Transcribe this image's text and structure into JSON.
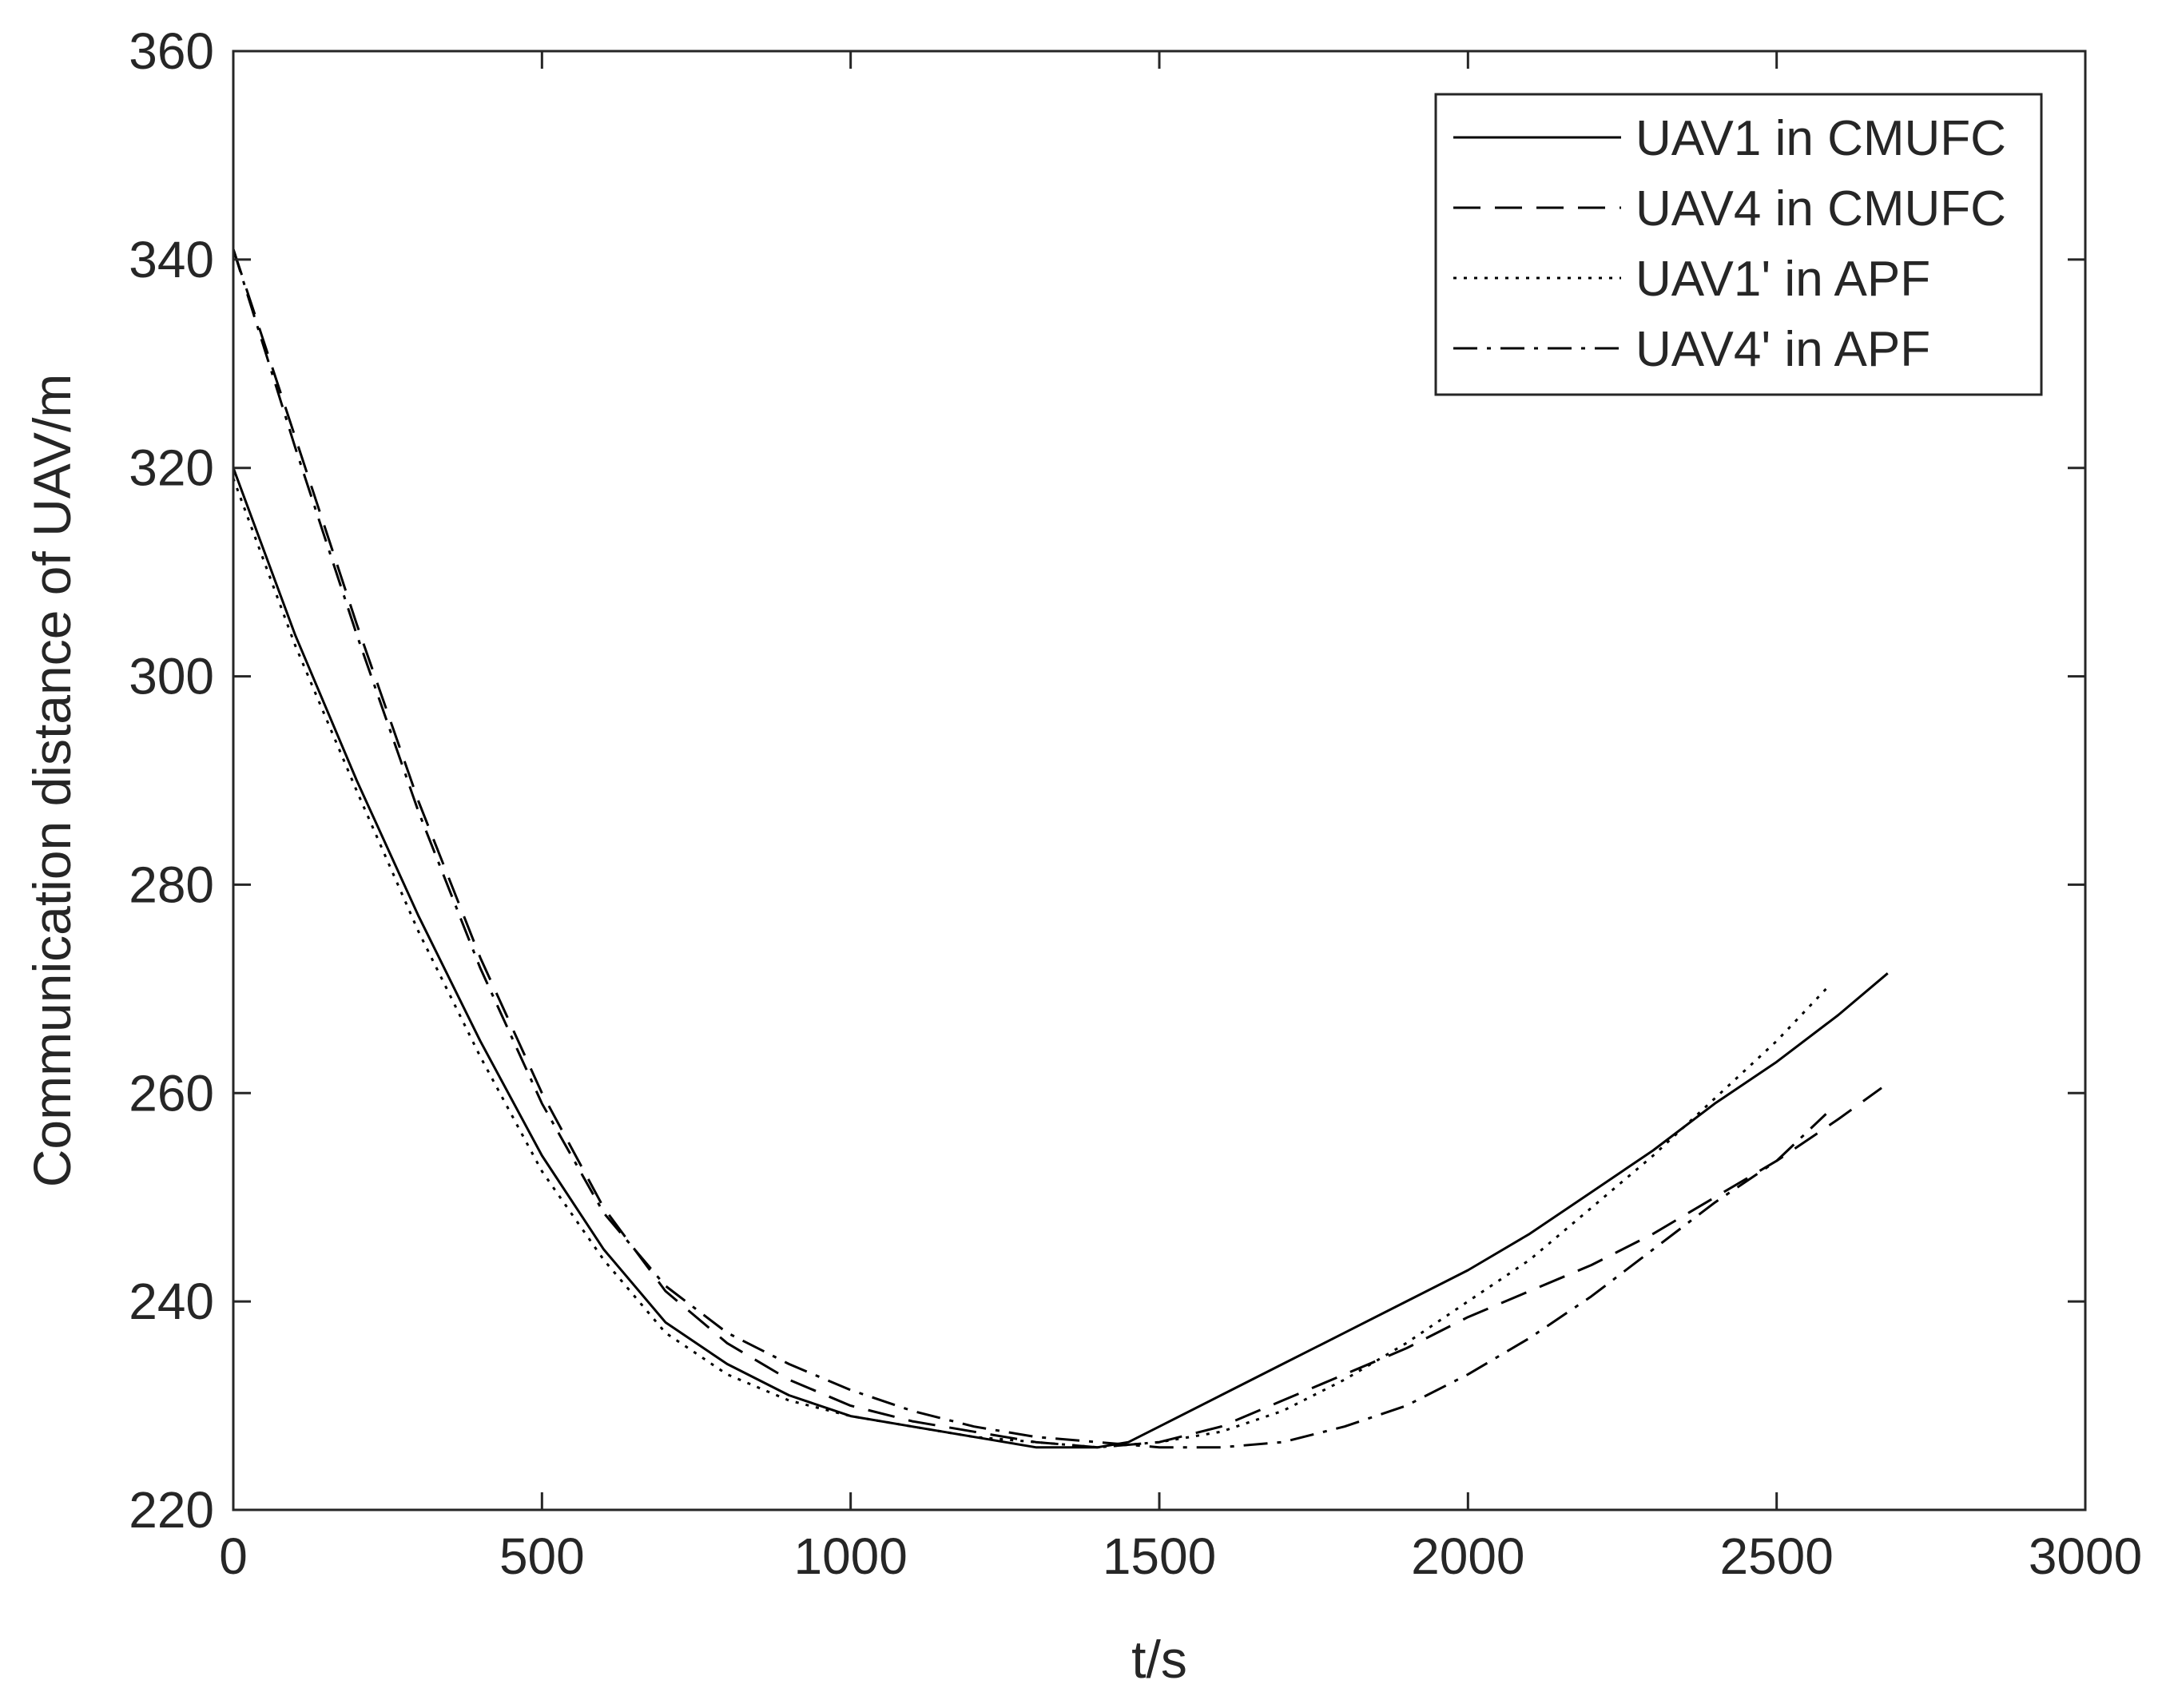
{
  "chart_data": {
    "type": "line",
    "title": "",
    "xlabel": "t/s",
    "ylabel": "Communication distance of UAV/m",
    "xlim": [
      0,
      3000
    ],
    "ylim": [
      220,
      360
    ],
    "xticks": [
      0,
      500,
      1000,
      1500,
      2000,
      2500,
      3000
    ],
    "yticks": [
      220,
      240,
      260,
      280,
      300,
      320,
      340,
      360
    ],
    "grid": false,
    "legend_position": "top-right",
    "series": [
      {
        "name": "UAV1 in CMUFC",
        "line_style": "solid",
        "color": "#000000",
        "x": [
          0,
          100,
          200,
          300,
          400,
          500,
          600,
          700,
          800,
          900,
          1000,
          1100,
          1200,
          1300,
          1400,
          1450,
          1500,
          1600,
          1700,
          1800,
          1900,
          2000,
          2100,
          2200,
          2300,
          2400,
          2500,
          2600,
          2680
        ],
        "y": [
          320,
          304,
          290,
          277,
          265,
          254,
          245,
          238,
          234,
          231,
          229,
          228,
          227,
          226,
          226,
          226.5,
          228,
          231,
          234,
          237,
          240,
          243,
          246.5,
          250.5,
          254.5,
          259,
          263,
          267.5,
          271.5
        ]
      },
      {
        "name": "UAV4 in CMUFC",
        "line_style": "dashed",
        "color": "#000000",
        "x": [
          0,
          100,
          200,
          300,
          400,
          500,
          600,
          700,
          800,
          900,
          1000,
          1100,
          1200,
          1300,
          1400,
          1500,
          1600,
          1700,
          1800,
          1900,
          2000,
          2100,
          2200,
          2300,
          2400,
          2500,
          2600,
          2670
        ],
        "y": [
          341,
          323,
          305,
          288,
          273,
          260,
          249,
          241,
          236,
          232.5,
          230,
          228.5,
          227.5,
          226.5,
          226,
          226.5,
          228,
          230.5,
          233,
          235.5,
          238.5,
          241,
          243.5,
          246.5,
          250,
          253.5,
          257.5,
          260.5
        ]
      },
      {
        "name": "UAV1' in APF",
        "line_style": "dotted",
        "color": "#000000",
        "x": [
          0,
          100,
          200,
          300,
          400,
          500,
          600,
          700,
          800,
          900,
          1000,
          1100,
          1200,
          1300,
          1400,
          1500,
          1600,
          1700,
          1800,
          1900,
          2000,
          2100,
          2200,
          2300,
          2400,
          2500,
          2580
        ],
        "y": [
          319,
          303,
          289,
          275.5,
          263.5,
          252.5,
          244,
          237,
          233,
          230.5,
          229,
          228,
          227,
          226.5,
          226,
          226.5,
          227.5,
          229.5,
          232.5,
          236,
          240,
          244,
          249,
          254,
          259.5,
          265,
          270
        ]
      },
      {
        "name": "UAV4' in APF",
        "line_style": "dashdot",
        "color": "#000000",
        "x": [
          0,
          100,
          200,
          300,
          400,
          500,
          600,
          700,
          800,
          900,
          1000,
          1100,
          1200,
          1300,
          1400,
          1500,
          1600,
          1700,
          1800,
          1900,
          2000,
          2100,
          2200,
          2300,
          2400,
          2500,
          2580
        ],
        "y": [
          341,
          322,
          304,
          287,
          272,
          259,
          248.5,
          241.5,
          237,
          234,
          231.5,
          229.5,
          228,
          227,
          226.5,
          226,
          226,
          226.5,
          228,
          230,
          233,
          236.5,
          240.5,
          245,
          249.5,
          253.5,
          258
        ]
      }
    ]
  }
}
